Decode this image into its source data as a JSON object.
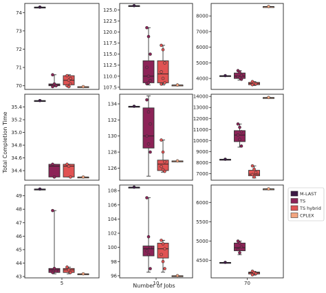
{
  "figure": {
    "ylabel": "Total Completion Time",
    "xlabel": "Number of Jobs",
    "col_labels": [
      "5",
      "10",
      "70"
    ]
  },
  "legend": {
    "placement": "right",
    "items": [
      {
        "label": "M-LAST",
        "color": "#3d1a45"
      },
      {
        "label": "TS",
        "color": "#8c2357"
      },
      {
        "label": "TS hybrid",
        "color": "#e05353"
      },
      {
        "label": "CPLEX",
        "color": "#f3a580"
      }
    ]
  },
  "chart_data": [
    {
      "type": "box",
      "row": 0,
      "col": 0,
      "jobs": "5",
      "ylim": [
        69.8,
        74.5
      ],
      "ticks": [
        70,
        71,
        72,
        73,
        74
      ],
      "series": [
        {
          "name": "M-LAST",
          "median": 74.3,
          "q1": 74.3,
          "q3": 74.3,
          "whislo": 74.3,
          "whishi": 74.3,
          "points": [
            74.3
          ]
        },
        {
          "name": "TS",
          "median": 70.05,
          "q1": 70.0,
          "q3": 70.1,
          "whislo": 69.95,
          "whishi": 70.6,
          "points": [
            70.6,
            70.05,
            70.0,
            69.95,
            70.1,
            70.0
          ]
        },
        {
          "name": "TS hybrid",
          "median": 70.3,
          "q1": 70.05,
          "q3": 70.55,
          "whislo": 69.95,
          "whishi": 70.6,
          "points": [
            70.55,
            70.3,
            70.1,
            70.0,
            69.95,
            70.4
          ]
        },
        {
          "name": "CPLEX",
          "median": 69.95,
          "q1": 69.95,
          "q3": 69.95,
          "whislo": 69.95,
          "whishi": 69.95,
          "points": [
            69.95
          ]
        }
      ]
    },
    {
      "type": "box",
      "row": 0,
      "col": 1,
      "jobs": "10",
      "ylim": [
        107.0,
        126.5
      ],
      "ticks": [
        107.5,
        110.0,
        112.5,
        115.0,
        117.5,
        120.0,
        122.5,
        125.0
      ],
      "series": [
        {
          "name": "M-LAST",
          "median": 126.0,
          "q1": 126.0,
          "q3": 126.0,
          "whislo": 126.0,
          "whishi": 126.0,
          "points": [
            126.0
          ]
        },
        {
          "name": "TS",
          "median": 110.0,
          "q1": 108.5,
          "q3": 113.5,
          "whislo": 108.0,
          "whishi": 121.0,
          "points": [
            121.0,
            119.0,
            115.0,
            112.0,
            110.0,
            109.0,
            108.3,
            108.5
          ]
        },
        {
          "name": "TS hybrid",
          "median": 110.5,
          "q1": 108.5,
          "q3": 113.5,
          "whislo": 108.0,
          "whishi": 117.0,
          "points": [
            117.0,
            116.0,
            113.0,
            111.0,
            109.5,
            108.5,
            108.2
          ]
        },
        {
          "name": "CPLEX",
          "median": 108.0,
          "q1": 108.0,
          "q3": 108.0,
          "whislo": 108.0,
          "whishi": 108.0,
          "points": [
            108.0
          ]
        }
      ]
    },
    {
      "type": "box",
      "row": 0,
      "col": 2,
      "jobs": "70",
      "ylim": [
        3300,
        8800
      ],
      "ticks": [
        4000,
        5000,
        6000,
        7000,
        8000
      ],
      "series": [
        {
          "name": "M-LAST",
          "median": 4180,
          "q1": 4180,
          "q3": 4180,
          "whislo": 4180,
          "whishi": 4180,
          "points": [
            4180
          ]
        },
        {
          "name": "TS",
          "median": 4150,
          "q1": 4000,
          "q3": 4350,
          "whislo": 3900,
          "whishi": 4500,
          "points": [
            4500,
            4400,
            4200,
            4100,
            4050,
            3950
          ]
        },
        {
          "name": "TS hybrid",
          "median": 3680,
          "q1": 3600,
          "q3": 3750,
          "whislo": 3550,
          "whishi": 3800,
          "points": [
            3800,
            3700,
            3650,
            3600
          ]
        },
        {
          "name": "CPLEX",
          "median": 8600,
          "q1": 8600,
          "q3": 8600,
          "whislo": 8600,
          "whishi": 8600,
          "points": [
            8600
          ]
        }
      ]
    },
    {
      "type": "box",
      "row": 1,
      "col": 0,
      "jobs": "5",
      "ylim": [
        34.25,
        35.6
      ],
      "ticks": [
        34.4,
        34.6,
        34.8,
        35.0,
        35.2,
        35.4
      ],
      "series": [
        {
          "name": "M-LAST",
          "median": 35.5,
          "q1": 35.5,
          "q3": 35.5,
          "whislo": 35.5,
          "whishi": 35.5,
          "points": [
            35.5
          ]
        },
        {
          "name": "TS",
          "median": 34.47,
          "q1": 34.3,
          "q3": 34.5,
          "whislo": 34.3,
          "whishi": 34.5,
          "points": [
            34.5,
            34.3
          ]
        },
        {
          "name": "TS hybrid",
          "median": 34.47,
          "q1": 34.3,
          "q3": 34.5,
          "whislo": 34.3,
          "whishi": 34.5,
          "points": [
            34.5,
            34.47,
            34.3
          ]
        },
        {
          "name": "CPLEX",
          "median": 34.3,
          "q1": 34.3,
          "q3": 34.3,
          "whislo": 34.3,
          "whishi": 34.3,
          "points": [
            34.3
          ]
        }
      ]
    },
    {
      "type": "box",
      "row": 1,
      "col": 1,
      "jobs": "10",
      "ylim": [
        124.5,
        135.2
      ],
      "ticks": [
        126,
        128,
        130,
        132,
        134
      ],
      "series": [
        {
          "name": "M-LAST",
          "median": 133.7,
          "q1": 133.7,
          "q3": 133.7,
          "whislo": 133.7,
          "whishi": 133.7,
          "points": [
            133.7
          ]
        },
        {
          "name": "TS",
          "median": 130.0,
          "q1": 128.5,
          "q3": 133.5,
          "whislo": 125.0,
          "whishi": 135.0,
          "points": [
            134.5,
            133.0,
            131.5,
            130.0,
            129.0,
            128.0
          ]
        },
        {
          "name": "TS hybrid",
          "median": 126.5,
          "q1": 125.7,
          "q3": 127.0,
          "whislo": 125.5,
          "whishi": 129.5,
          "points": [
            129.5,
            128.0,
            126.8,
            126.2,
            125.8,
            125.6
          ]
        },
        {
          "name": "CPLEX",
          "median": 126.9,
          "q1": 126.9,
          "q3": 126.9,
          "whislo": 126.9,
          "whishi": 126.9,
          "points": [
            126.9
          ]
        }
      ]
    },
    {
      "type": "box",
      "row": 1,
      "col": 2,
      "jobs": "70",
      "ylim": [
        6400,
        14200
      ],
      "ticks": [
        7000,
        8000,
        9000,
        10000,
        11000,
        12000,
        13000,
        14000
      ],
      "series": [
        {
          "name": "M-LAST",
          "median": 8300,
          "q1": 8300,
          "q3": 8300,
          "whislo": 8300,
          "whishi": 8300,
          "points": [
            8300
          ]
        },
        {
          "name": "TS",
          "median": 10500,
          "q1": 9900,
          "q3": 10900,
          "whislo": 9400,
          "whishi": 11500,
          "points": [
            11500,
            11200,
            10800,
            10500,
            10100,
            9500
          ]
        },
        {
          "name": "TS hybrid",
          "median": 6950,
          "q1": 6800,
          "q3": 7300,
          "whislo": 6600,
          "whishi": 7700,
          "points": [
            7700,
            7400,
            7100,
            6900,
            6700
          ]
        },
        {
          "name": "CPLEX",
          "median": 13900,
          "q1": 13900,
          "q3": 13900,
          "whislo": 13900,
          "whishi": 13900,
          "points": [
            13900
          ]
        }
      ]
    },
    {
      "type": "box",
      "row": 2,
      "col": 0,
      "jobs": "5",
      "ylim": [
        42.9,
        49.8
      ],
      "ticks": [
        43,
        44,
        45,
        46,
        47,
        48,
        49
      ],
      "series": [
        {
          "name": "M-LAST",
          "median": 49.5,
          "q1": 49.5,
          "q3": 49.5,
          "whislo": 49.5,
          "whishi": 49.5,
          "points": [
            49.5
          ]
        },
        {
          "name": "TS",
          "median": 43.5,
          "q1": 43.3,
          "q3": 43.6,
          "whislo": 43.2,
          "whishi": 47.9,
          "points": [
            47.9,
            43.6,
            43.4,
            43.3
          ]
        },
        {
          "name": "TS hybrid",
          "median": 43.5,
          "q1": 43.3,
          "q3": 43.6,
          "whislo": 43.2,
          "whishi": 43.7,
          "points": [
            43.7,
            43.5,
            43.3
          ]
        },
        {
          "name": "CPLEX",
          "median": 43.2,
          "q1": 43.2,
          "q3": 43.2,
          "whislo": 43.2,
          "whishi": 43.2,
          "points": [
            43.2
          ]
        }
      ]
    },
    {
      "type": "box",
      "row": 2,
      "col": 1,
      "jobs": "10",
      "ylim": [
        95.7,
        108.8
      ],
      "ticks": [
        96,
        98,
        100,
        102,
        104,
        106,
        108
      ],
      "series": [
        {
          "name": "M-LAST",
          "median": 108.5,
          "q1": 108.5,
          "q3": 108.5,
          "whislo": 108.5,
          "whishi": 108.5,
          "points": [
            108.5
          ]
        },
        {
          "name": "TS",
          "median": 99.8,
          "q1": 98.8,
          "q3": 100.2,
          "whislo": 96.5,
          "whishi": 107.0,
          "points": [
            107.0,
            101.5,
            100.0,
            99.5,
            99.0,
            97.0
          ]
        },
        {
          "name": "TS hybrid",
          "median": 99.8,
          "q1": 98.5,
          "q3": 100.6,
          "whislo": 96.5,
          "whishi": 101.0,
          "points": [
            101.0,
            100.5,
            99.8,
            99.0,
            98.0,
            97.0
          ]
        },
        {
          "name": "CPLEX",
          "median": 96.0,
          "q1": 96.0,
          "q3": 96.0,
          "whislo": 96.0,
          "whishi": 96.0,
          "points": [
            96.0
          ]
        }
      ]
    },
    {
      "type": "box",
      "row": 2,
      "col": 2,
      "jobs": "70",
      "ylim": [
        4050,
        6450
      ],
      "ticks": [
        4500,
        5000,
        5500,
        6000
      ],
      "series": [
        {
          "name": "M-LAST",
          "median": 4450,
          "q1": 4450,
          "q3": 4450,
          "whislo": 4450,
          "whishi": 4450,
          "points": [
            4450
          ]
        },
        {
          "name": "TS",
          "median": 4830,
          "q1": 4750,
          "q3": 4950,
          "whislo": 4650,
          "whishi": 5000,
          "points": [
            5000,
            4950,
            4850,
            4780,
            4700
          ]
        },
        {
          "name": "TS hybrid",
          "median": 4180,
          "q1": 4150,
          "q3": 4200,
          "whislo": 4120,
          "whishi": 4220,
          "points": [
            4220,
            4190,
            4160,
            4130
          ]
        },
        {
          "name": "CPLEX",
          "median": 6350,
          "q1": 6350,
          "q3": 6350,
          "whislo": 6350,
          "whishi": 6350,
          "points": [
            6350
          ]
        }
      ]
    }
  ]
}
